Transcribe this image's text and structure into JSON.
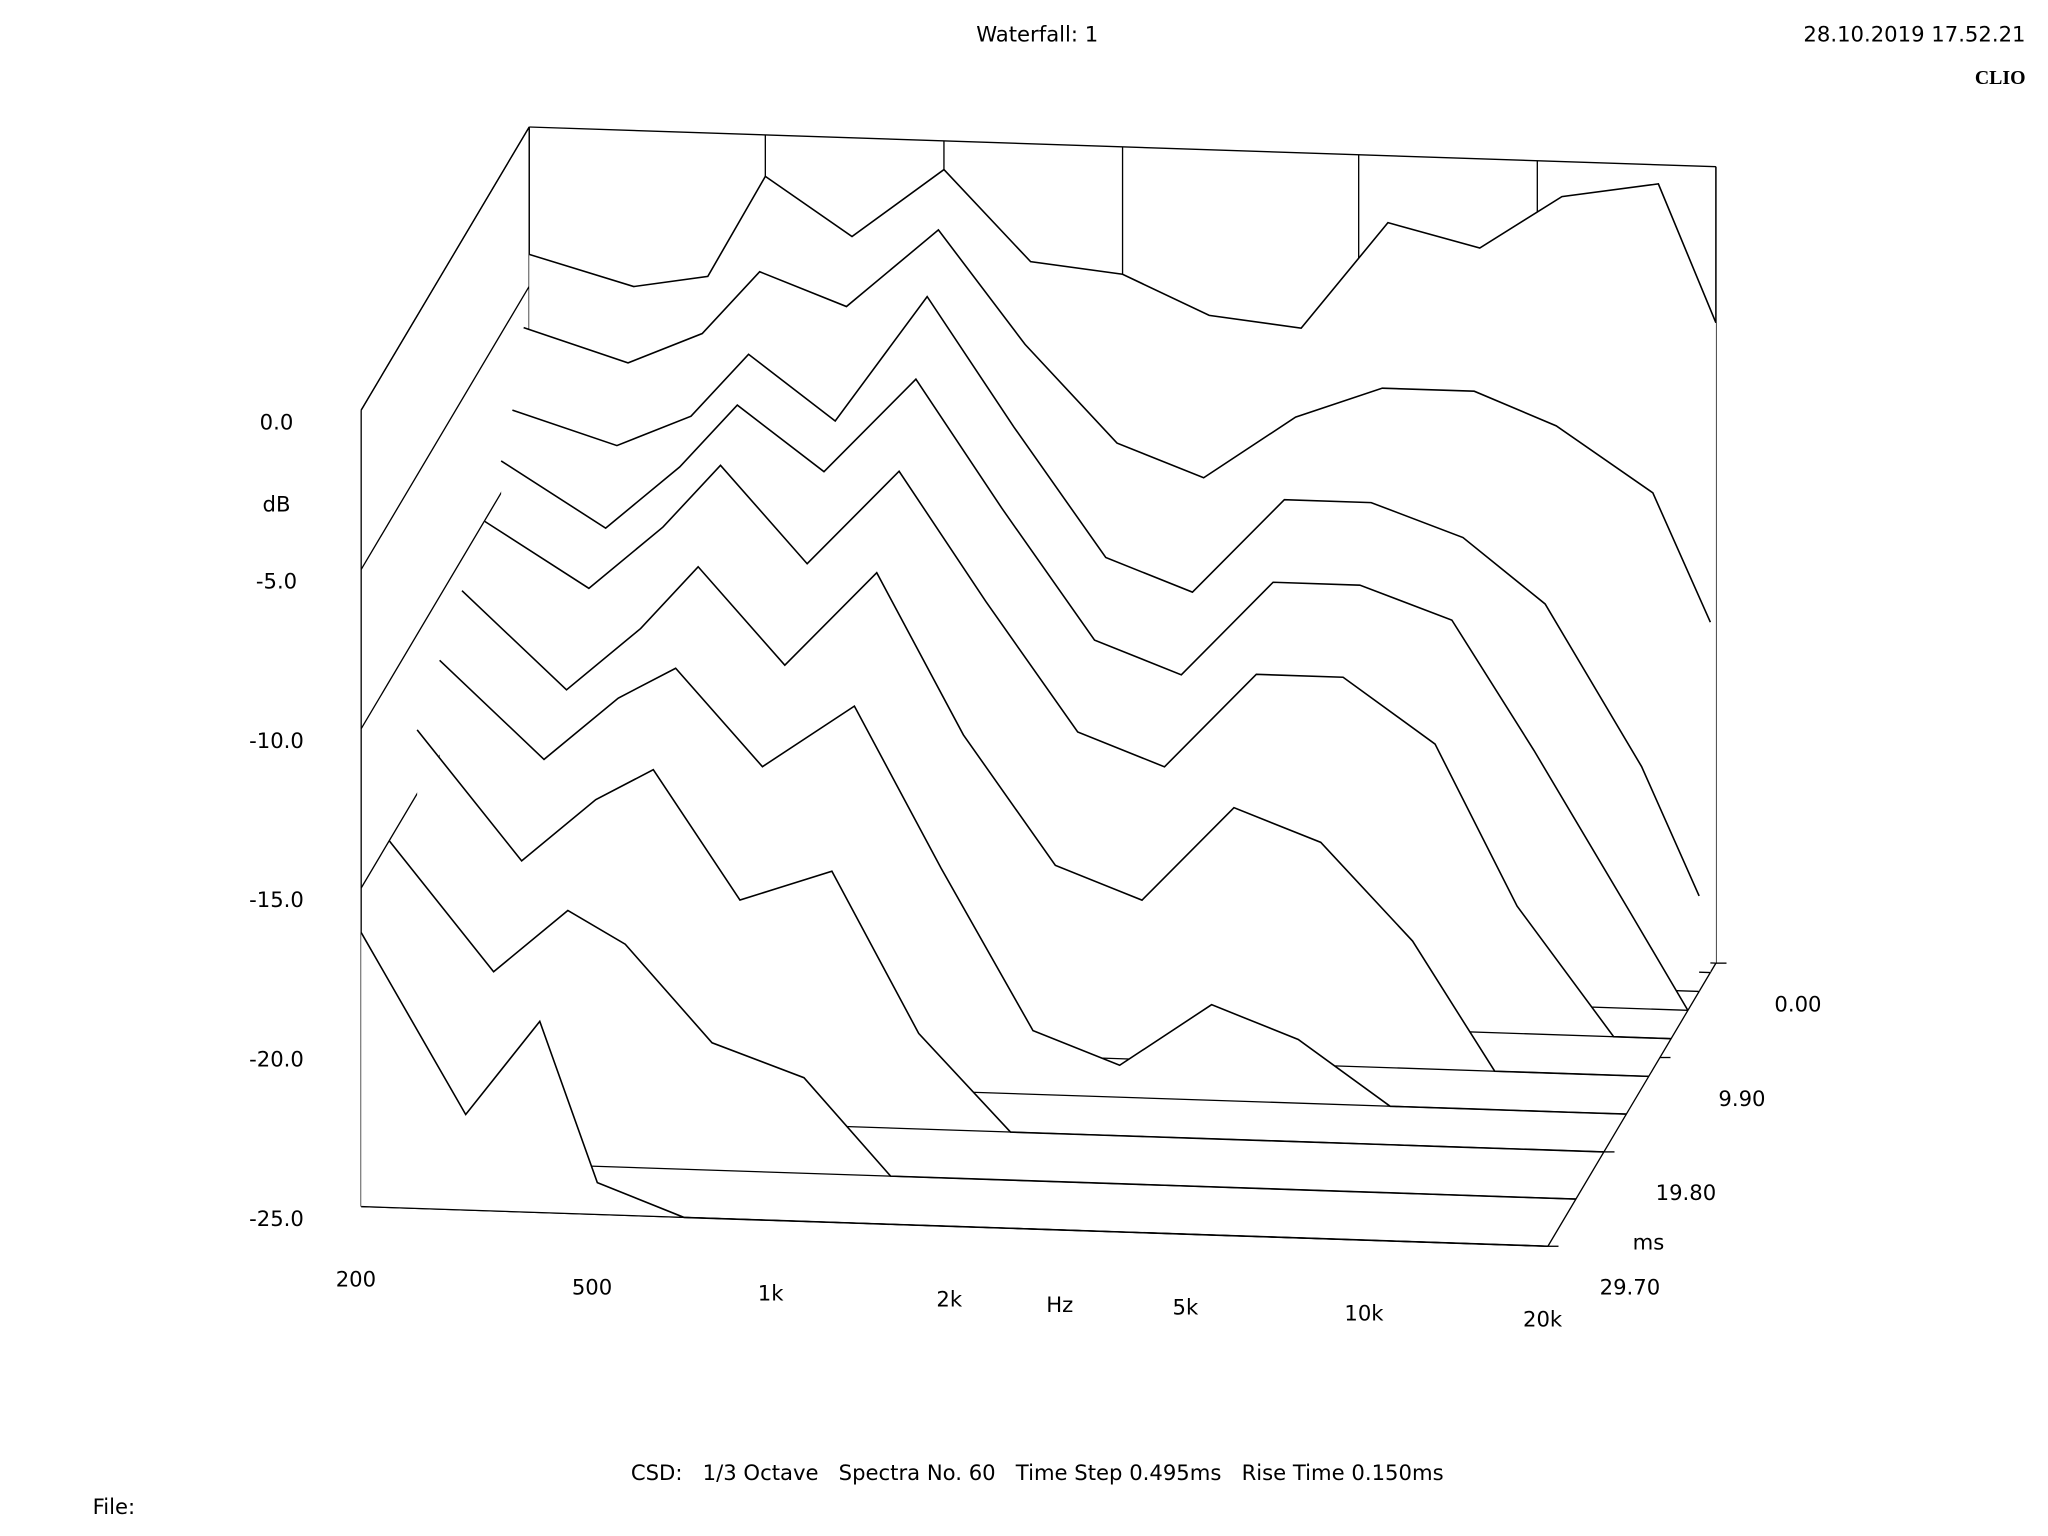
{
  "chart_data": {
    "type": "waterfall",
    "title": "Waterfall: 1",
    "timestamp": "28.10.2019 17.52.21",
    "brand": "CLIO",
    "footer": "CSD:   1/3 Octave   Spectra No. 60   Time Step 0.495ms   Rise Time 0.150ms",
    "file_label": "File:",
    "x_label": "Hz",
    "y_label": "dB",
    "z_label": "ms",
    "log_x": true,
    "x": [
      200,
      300,
      400,
      500,
      700,
      1000,
      1400,
      2000,
      2800,
      4000,
      5600,
      8000,
      11000,
      16000,
      20000
    ],
    "xlim": [
      200,
      20000
    ],
    "xticks": [
      {
        "value": 200,
        "label": "200"
      },
      {
        "value": 500,
        "label": "500"
      },
      {
        "value": 1000,
        "label": "1k"
      },
      {
        "value": 2000,
        "label": "2k"
      },
      {
        "value": 5000,
        "label": "5k"
      },
      {
        "value": 10000,
        "label": "10k"
      },
      {
        "value": 20000,
        "label": "20k"
      }
    ],
    "ylim": [
      -25,
      0
    ],
    "yticks": [
      {
        "value": 0,
        "label": "0.0"
      },
      {
        "value": -5,
        "label": "-5.0"
      },
      {
        "value": -10,
        "label": "-10.0"
      },
      {
        "value": -15,
        "label": "-15.0"
      },
      {
        "value": -20,
        "label": "-20.0"
      },
      {
        "value": -25,
        "label": "-25.0"
      }
    ],
    "zlim": [
      0,
      29.7
    ],
    "zticks": [
      {
        "value": 0,
        "label": "0.00"
      },
      {
        "value": 9.9,
        "label": "9.90"
      },
      {
        "value": 19.8,
        "label": "19.80"
      },
      {
        "value": 29.7,
        "label": "29.70"
      }
    ],
    "z": [
      0,
      0.99,
      2.97,
      4.95,
      7.92,
      11.88,
      15.84,
      19.8,
      24.75,
      29.7
    ],
    "color": "#000000",
    "series": [
      {
        "values": [
          -4,
          -4.9,
          -4.5,
          -1.3,
          -3.1,
          -0.9,
          -3.7,
          -4,
          -5.2,
          -5.5,
          -2.1,
          -2.8,
          -1.1,
          -0.6,
          -4.9
        ]
      },
      {
        "values": [
          -6,
          -7,
          -6,
          -4,
          -5,
          -2.5,
          -6,
          -9,
          -10,
          -8,
          -7,
          -7,
          -8,
          -10,
          -14
        ]
      },
      {
        "values": [
          -8,
          -9,
          -8,
          -6,
          -8,
          -4,
          -8,
          -12,
          -13,
          -10,
          -10,
          -11,
          -13,
          -18,
          -22
        ]
      },
      {
        "values": [
          -9,
          -11,
          -9,
          -7,
          -9,
          -6,
          -10,
          -14,
          -15,
          -12,
          -12,
          -13,
          -17,
          -22,
          -25
        ]
      },
      {
        "values": [
          -10,
          -12,
          -10,
          -8,
          -11,
          -8,
          -12,
          -16,
          -17,
          -14,
          -14,
          -16,
          -21,
          -25,
          -25
        ]
      },
      {
        "values": [
          -11,
          -14,
          -12,
          -10,
          -13,
          -10,
          -15,
          -19,
          -20,
          -17,
          -18,
          -21,
          -25,
          -25,
          -25
        ]
      },
      {
        "values": [
          -12,
          -15,
          -13,
          -12,
          -15,
          -13,
          -18,
          -23,
          -24,
          -22,
          -23,
          -25,
          -25,
          -25,
          -25
        ]
      },
      {
        "values": [
          -13,
          -17,
          -15,
          -14,
          -18,
          -17,
          -22,
          -25,
          -25,
          -25,
          -25,
          -25,
          -25,
          -25,
          -25
        ]
      },
      {
        "values": [
          -15,
          -19,
          -17,
          -18,
          -21,
          -22,
          -25,
          -25,
          -25,
          -25,
          -25,
          -25,
          -25,
          -25,
          -25
        ]
      },
      {
        "values": [
          -16.4,
          -22,
          -19,
          -24,
          -25,
          -25,
          -25,
          -25,
          -25,
          -25,
          -25,
          -25,
          -25,
          -25,
          -25
        ]
      }
    ]
  }
}
